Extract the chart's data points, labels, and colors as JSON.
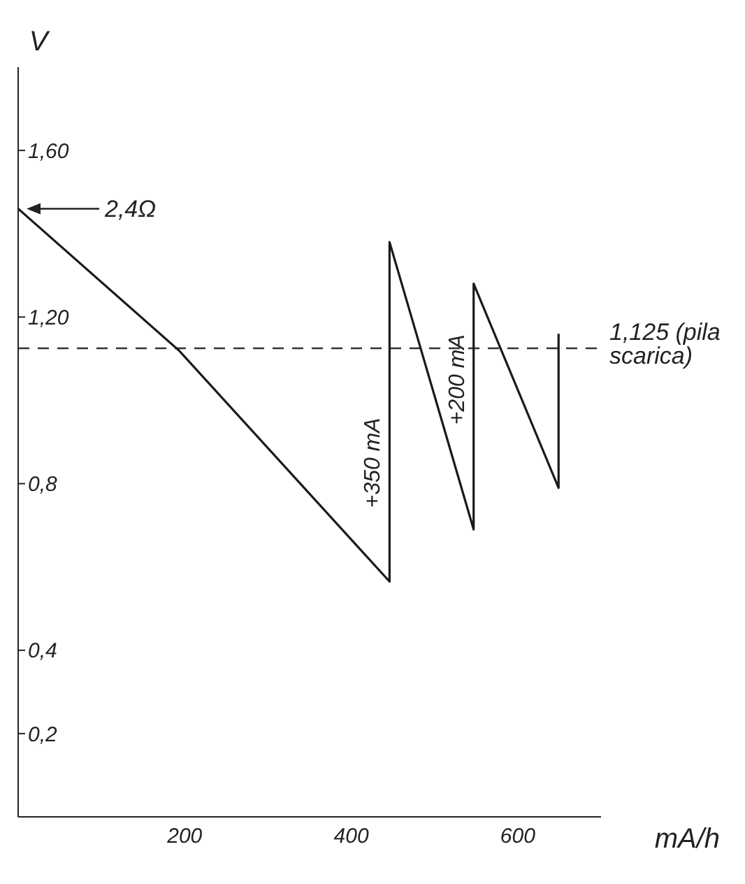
{
  "chart_data": {
    "type": "line",
    "xlabel": "mA/h",
    "ylabel": "V",
    "x": [
      0,
      193,
      446,
      446,
      547,
      547,
      649,
      649
    ],
    "series": [
      {
        "color": "#1a1a1a",
        "values": [
          1.46,
          1.12,
          0.565,
          1.38,
          0.69,
          1.28,
          0.79,
          1.16
        ]
      }
    ],
    "xlim": [
      0,
      700
    ],
    "ylim": [
      0,
      1.8
    ],
    "xticks": [
      200,
      400,
      600
    ],
    "yticks": [
      {
        "value": 0.2,
        "label": "0,2"
      },
      {
        "value": 0.4,
        "label": "0,4"
      },
      {
        "value": 0.8,
        "label": "0,8"
      },
      {
        "value": 1.2,
        "label": "1,20"
      },
      {
        "value": 1.6,
        "label": "1,60"
      }
    ],
    "ref_lines": [
      {
        "axis": "y",
        "value": 1.125,
        "label": "1,125 (pila scarica)",
        "color": "#333333",
        "line_style": "dashed"
      }
    ],
    "annotations": [
      "2,4Ω",
      {
        "text": "+350 mA",
        "x": 446,
        "y": 0.85
      },
      {
        "text": "+200 mA",
        "x": 547,
        "y": 1.05
      }
    ],
    "grid": false,
    "legend": false,
    "marker": "none",
    "line_style": "solid"
  }
}
